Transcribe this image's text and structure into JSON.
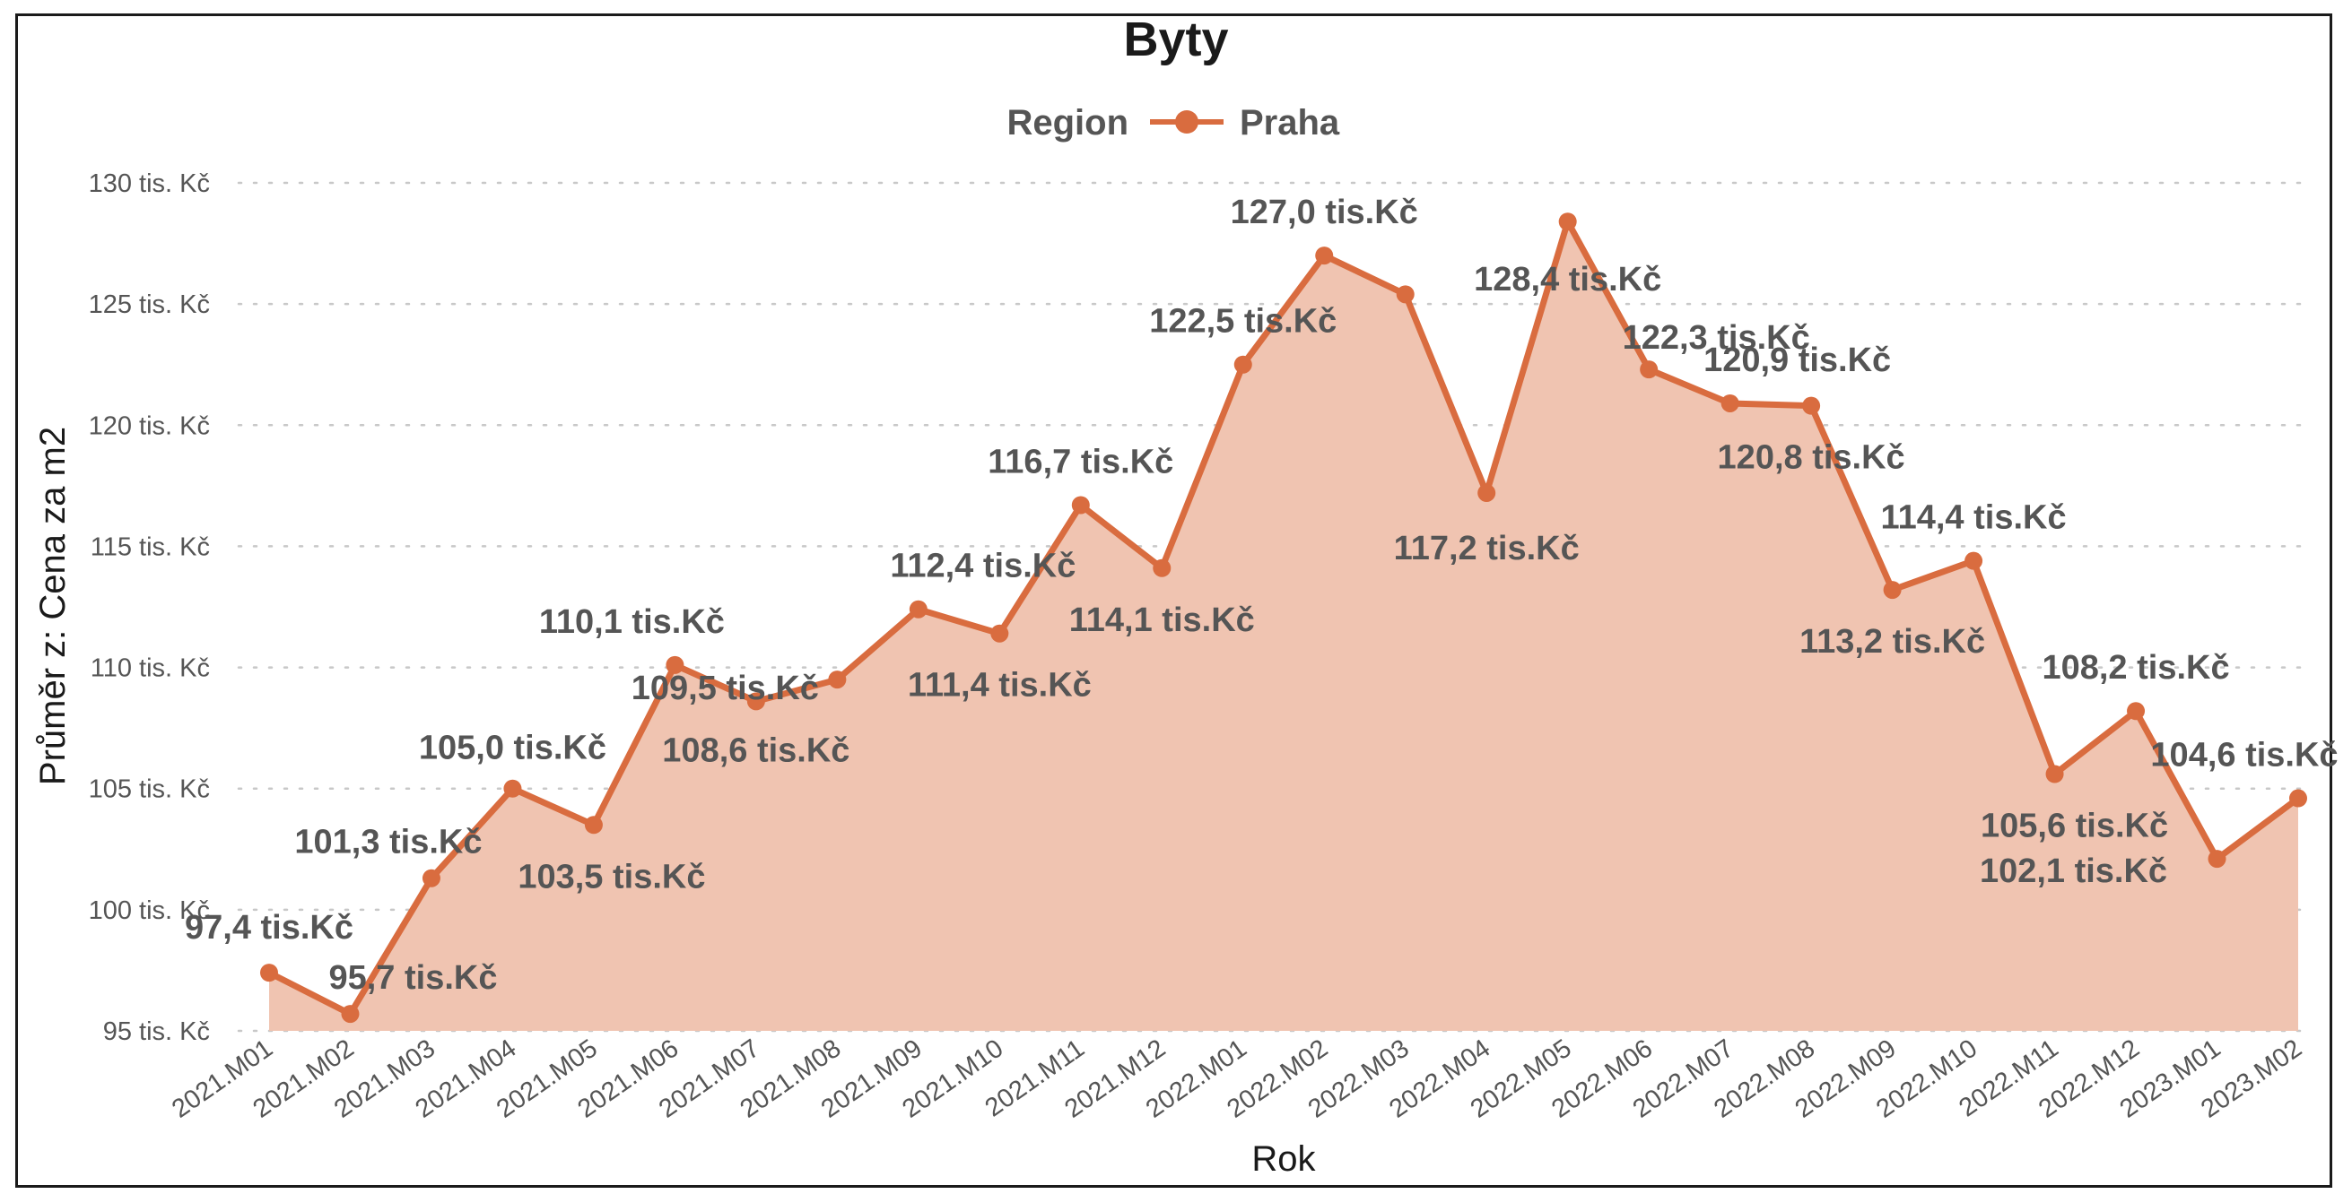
{
  "chart_data": {
    "type": "area",
    "title": "Byty",
    "xlabel": "Rok",
    "ylabel": "Průměr z: Cena za m2",
    "legend_title": "Region",
    "legend_position": "top-center",
    "grid": true,
    "ylim": [
      95,
      130
    ],
    "yticks": [
      95,
      100,
      105,
      110,
      115,
      120,
      125,
      130
    ],
    "ytick_labels": [
      "95 tis. Kč",
      "100 tis. Kč",
      "105 tis. Kč",
      "110 tis. Kč",
      "115 tis. Kč",
      "120 tis. Kč",
      "125 tis. Kč",
      "130 tis. Kč"
    ],
    "categories": [
      "2021.M01",
      "2021.M02",
      "2021.M03",
      "2021.M04",
      "2021.M05",
      "2021.M06",
      "2021.M07",
      "2021.M08",
      "2021.M09",
      "2021.M10",
      "2021.M11",
      "2021.M12",
      "2022.M01",
      "2022.M02",
      "2022.M03",
      "2022.M04",
      "2022.M05",
      "2022.M06",
      "2022.M07",
      "2022.M08",
      "2022.M09",
      "2022.M10",
      "2022.M11",
      "2022.M12",
      "2023.M01",
      "2023.M02"
    ],
    "series": [
      {
        "name": "Praha",
        "color": "#d96c3f",
        "fill_color": "#f0c4b1",
        "values": [
          97.4,
          95.7,
          101.3,
          105.0,
          103.5,
          110.1,
          108.6,
          109.5,
          112.4,
          111.4,
          116.7,
          114.1,
          122.5,
          127.0,
          125.4,
          117.2,
          128.4,
          122.3,
          120.9,
          120.8,
          113.2,
          114.4,
          105.6,
          108.2,
          102.1,
          104.6
        ]
      }
    ],
    "data_labels": [
      {
        "index": 0,
        "text": "97,4 tis.Kč"
      },
      {
        "index": 1,
        "text": "95,7 tis.Kč"
      },
      {
        "index": 2,
        "text": "101,3 tis.Kč"
      },
      {
        "index": 3,
        "text": "105,0 tis.Kč"
      },
      {
        "index": 4,
        "text": "103,5 tis.Kč"
      },
      {
        "index": 5,
        "text": "110,1 tis.Kč"
      },
      {
        "index": 7,
        "text": "109,5 tis.Kč"
      },
      {
        "index": 6,
        "text": "108,6 tis.Kč"
      },
      {
        "index": 8,
        "text": "112,4 tis.Kč"
      },
      {
        "index": 9,
        "text": "111,4 tis.Kč"
      },
      {
        "index": 10,
        "text": "116,7 tis.Kč"
      },
      {
        "index": 11,
        "text": "114,1 tis.Kč"
      },
      {
        "index": 12,
        "text": "122,5 tis.Kč"
      },
      {
        "index": 13,
        "text": "127,0 tis.Kč"
      },
      {
        "index": 16,
        "text": "128,4 tis.Kč"
      },
      {
        "index": 15,
        "text": "117,2 tis.Kč"
      },
      {
        "index": 17,
        "text": "122,3 tis.Kč"
      },
      {
        "index": 18,
        "text": "120,9 tis.Kč"
      },
      {
        "index": 19,
        "text": "120,8 tis.Kč"
      },
      {
        "index": 21,
        "text": "114,4 tis.Kč"
      },
      {
        "index": 20,
        "text": "113,2 tis.Kč"
      },
      {
        "index": 23,
        "text": "108,2 tis.Kč"
      },
      {
        "index": 25,
        "text": "104,6 tis.Kč"
      },
      {
        "index": 22,
        "text": "105,6 tis.Kč"
      },
      {
        "index": 24,
        "text": "102,1 tis.Kč"
      }
    ]
  }
}
